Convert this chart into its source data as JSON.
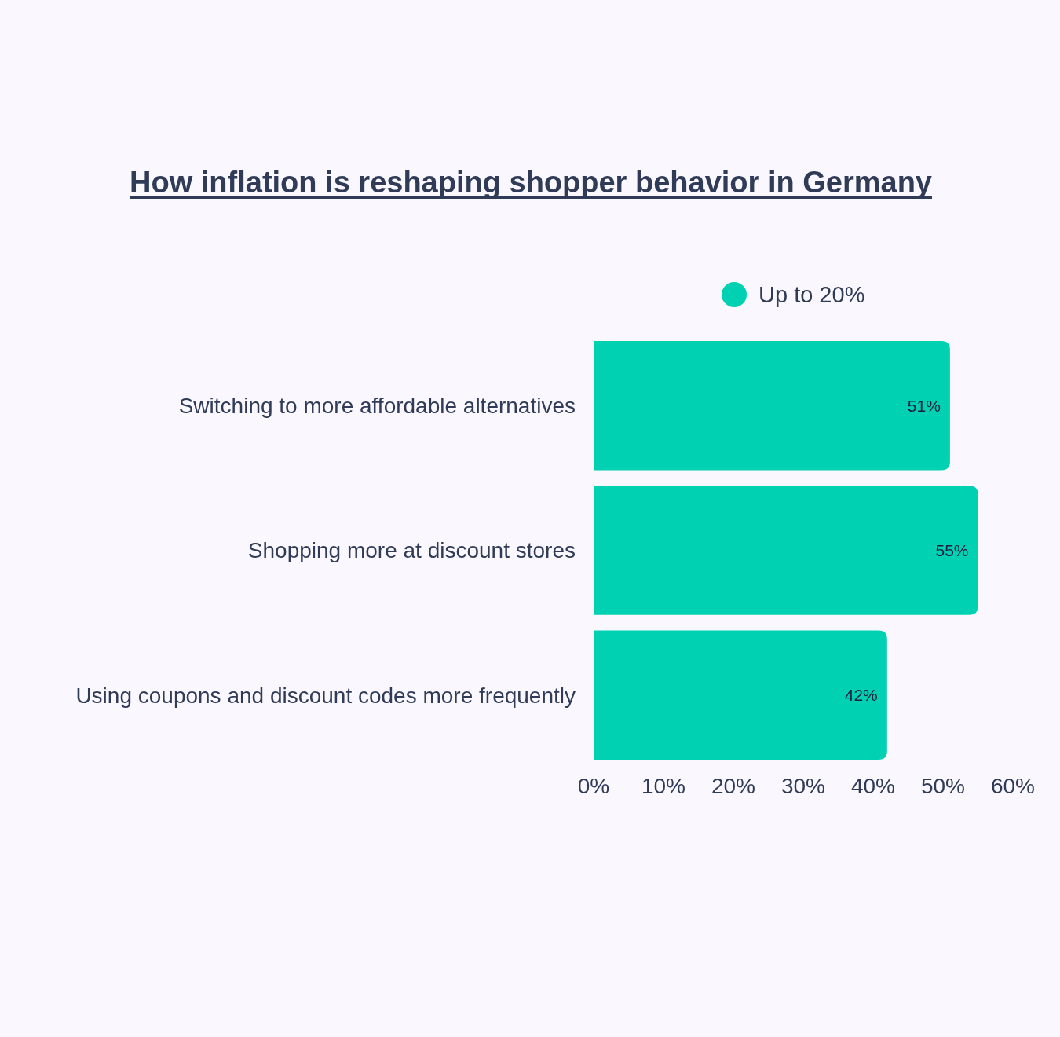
{
  "chart_data": {
    "type": "bar",
    "orientation": "horizontal",
    "title": "How inflation is reshaping shopper behavior in Germany",
    "categories": [
      "Switching to more affordable alternatives",
      "Shopping more at discount stores",
      "Using coupons and discount codes more frequently"
    ],
    "series": [
      {
        "name": "Up to 20%",
        "color": "#00d1b2",
        "values": [
          51,
          55,
          42
        ],
        "value_labels": [
          "51%",
          "55%",
          "42%"
        ]
      }
    ],
    "xlim": [
      0,
      60
    ],
    "xticks": [
      {
        "value": 0,
        "label": "0%"
      },
      {
        "value": 10,
        "label": "10%"
      },
      {
        "value": 20,
        "label": "20%"
      },
      {
        "value": 30,
        "label": "30%"
      },
      {
        "value": 40,
        "label": "40%"
      },
      {
        "value": 50,
        "label": "50%"
      },
      {
        "value": 60,
        "label": "60%"
      }
    ],
    "grid": false,
    "legend": "top"
  }
}
